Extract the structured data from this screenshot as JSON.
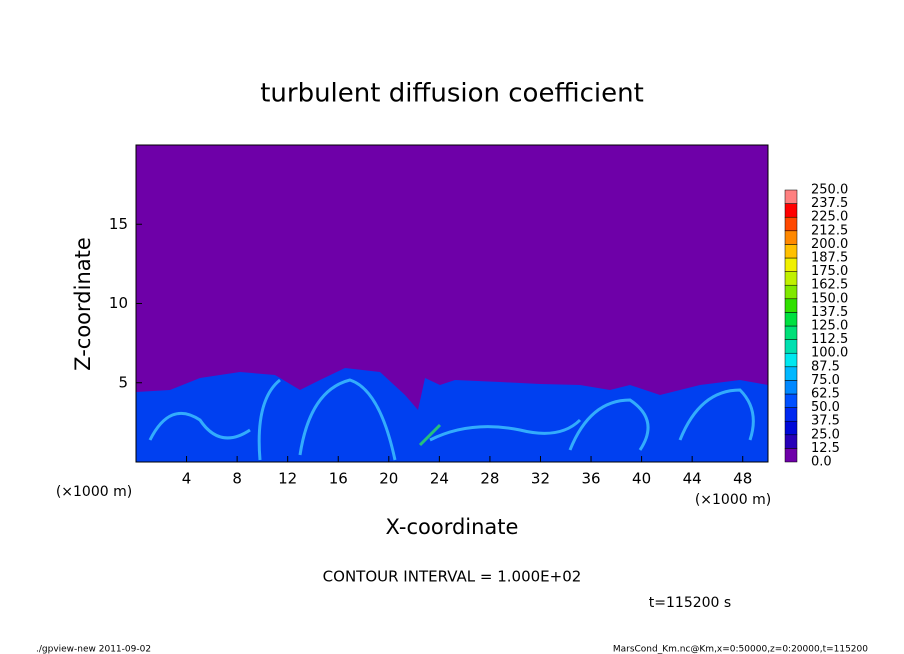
{
  "chart_data": {
    "type": "heatmap",
    "title": "turbulent diffusion coefficient",
    "x_label": "X-coordinate",
    "y_label": "Z-coordinate",
    "x_unit": "(×1000 m)",
    "y_unit": "(×1000 m)",
    "xlim": [
      0,
      50
    ],
    "xticks": [
      4,
      8,
      12,
      16,
      20,
      24,
      28,
      32,
      36,
      40,
      44,
      48
    ],
    "ylim": [
      0,
      20
    ],
    "yticks": [
      5,
      10,
      15
    ],
    "colorbar": {
      "levels": [
        {
          "value": 0,
          "label": "0.0"
        },
        {
          "value": 12.5,
          "label": "12.5"
        },
        {
          "value": 25,
          "label": "25.0"
        },
        {
          "value": 37.5,
          "label": "37.5"
        },
        {
          "value": 50,
          "label": "50.0"
        },
        {
          "value": 62.5,
          "label": "62.5"
        },
        {
          "value": 75,
          "label": "75.0"
        },
        {
          "value": 87.5,
          "label": "87.5"
        },
        {
          "value": 100,
          "label": "100.0"
        },
        {
          "value": 112.5,
          "label": "112.5"
        },
        {
          "value": 125,
          "label": "125.0"
        },
        {
          "value": 137.5,
          "label": "137.5"
        },
        {
          "value": 150,
          "label": "150.0"
        },
        {
          "value": 162.5,
          "label": "162.5"
        },
        {
          "value": 175,
          "label": "175.0"
        },
        {
          "value": 187.5,
          "label": "187.5"
        },
        {
          "value": 200,
          "label": "200.0"
        },
        {
          "value": 212.5,
          "label": "212.5"
        },
        {
          "value": 225,
          "label": "225.0"
        },
        {
          "value": 237.5,
          "label": "237.5"
        },
        {
          "value": 250,
          "label": "250.0"
        }
      ],
      "colors": [
        "#6e00a8",
        "#2800b8",
        "#0008d8",
        "#0028f0",
        "#0050ff",
        "#0088ff",
        "#00b8ff",
        "#00e8f0",
        "#00e0b0",
        "#00e078",
        "#00e040",
        "#30e000",
        "#80e800",
        "#c0f000",
        "#f0f000",
        "#ffc000",
        "#ff8800",
        "#ff4800",
        "#ff0000",
        "#ff8080"
      ]
    },
    "contour_note": "CONTOUR INTERVAL = 1.000E+02",
    "time_label": "t=115200 s",
    "footer_left": "./gpview-new  2011-09-02",
    "footer_right": "MarsCond_Km.nc@Km,x=0:50000,z=0:20000,t=115200"
  }
}
